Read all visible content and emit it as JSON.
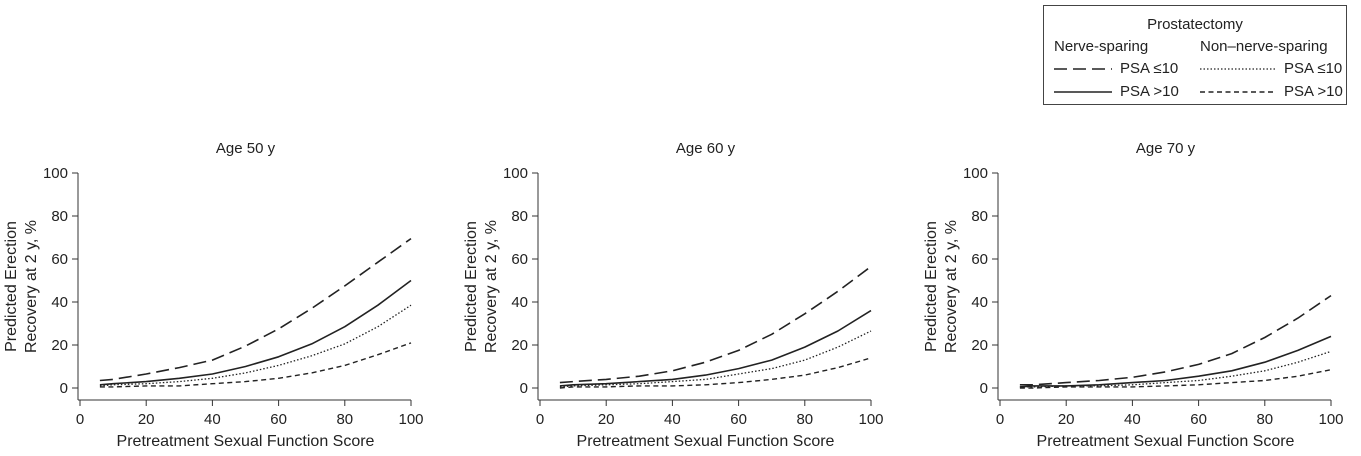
{
  "legend": {
    "title": "Prostatectomy",
    "groups": [
      "Nerve-sparing",
      "Non–nerve-sparing"
    ],
    "items": [
      "PSA ≤10",
      "PSA >10",
      "PSA ≤10",
      "PSA >10"
    ]
  },
  "chart_data": [
    {
      "type": "line",
      "title": "Age 50 y",
      "xlabel": "Pretreatment Sexual Function Score",
      "ylabel": "Predicted Erection Recovery at 2 y, %",
      "xlim": [
        0,
        100
      ],
      "ylim": [
        0,
        100
      ],
      "xticks": [
        "0",
        "20",
        "40",
        "60",
        "80",
        "100"
      ],
      "yticks": [
        "0",
        "20",
        "40",
        "60",
        "80",
        "100"
      ],
      "x": [
        6,
        10,
        20,
        30,
        40,
        50,
        60,
        70,
        80,
        90,
        100
      ],
      "series": [
        {
          "name": "Nerve-sparing PSA ≤10",
          "style": "longdash",
          "values": [
            3.5,
            4,
            6.5,
            9.5,
            13,
            19.5,
            27.5,
            37,
            47.5,
            58.5,
            69.5
          ]
        },
        {
          "name": "Nerve-sparing PSA >10",
          "style": "solid",
          "values": [
            1.5,
            2,
            3,
            4.5,
            6.5,
            10,
            14.5,
            20.5,
            28.5,
            38.5,
            50
          ]
        },
        {
          "name": "Non–nerve-sparing PSA ≤10",
          "style": "dotted",
          "values": [
            1,
            1.5,
            2,
            3,
            4.5,
            7,
            10.5,
            15,
            20.5,
            28.5,
            38.5
          ]
        },
        {
          "name": "Non–nerve-sparing PSA >10",
          "style": "shortdash",
          "values": [
            0.5,
            0.5,
            1,
            1,
            2,
            3,
            4.5,
            7,
            10.5,
            15.5,
            21
          ]
        }
      ],
      "grid": false,
      "legend_position": "top-right"
    },
    {
      "type": "line",
      "title": "Age 60 y",
      "xlabel": "Pretreatment Sexual Function Score",
      "ylabel": "Predicted Erection Recovery at 2 y, %",
      "xlim": [
        0,
        100
      ],
      "ylim": [
        0,
        100
      ],
      "xticks": [
        "0",
        "20",
        "40",
        "60",
        "80",
        "100"
      ],
      "yticks": [
        "0",
        "20",
        "40",
        "60",
        "80",
        "100"
      ],
      "x": [
        6,
        10,
        20,
        30,
        40,
        50,
        60,
        70,
        80,
        90,
        100
      ],
      "series": [
        {
          "name": "Nerve-sparing PSA ≤10",
          "style": "longdash",
          "values": [
            2.5,
            3,
            4,
            5.5,
            8,
            12,
            17.5,
            25,
            34.5,
            45,
            56.5
          ]
        },
        {
          "name": "Nerve-sparing PSA >10",
          "style": "solid",
          "values": [
            1,
            1.5,
            2,
            3,
            4,
            6,
            9,
            13,
            19,
            26.5,
            36
          ]
        },
        {
          "name": "Non–nerve-sparing PSA ≤10",
          "style": "dotted",
          "values": [
            0.5,
            1,
            1.5,
            2,
            3,
            4,
            6.5,
            9,
            13,
            19,
            26.5
          ]
        },
        {
          "name": "Non–nerve-sparing PSA >10",
          "style": "shortdash",
          "values": [
            0,
            0.5,
            0.5,
            1,
            1,
            1.5,
            2.5,
            4,
            6,
            9.5,
            14
          ]
        }
      ],
      "grid": false,
      "legend_position": "top-right"
    },
    {
      "type": "line",
      "title": "Age 70 y",
      "xlabel": "Pretreatment Sexual Function Score",
      "ylabel": "Predicted Erection Recovery at 2 y, %",
      "xlim": [
        0,
        100
      ],
      "ylim": [
        0,
        100
      ],
      "xticks": [
        "0",
        "20",
        "40",
        "60",
        "80",
        "100"
      ],
      "yticks": [
        "0",
        "20",
        "40",
        "60",
        "80",
        "100"
      ],
      "x": [
        6,
        10,
        20,
        30,
        40,
        50,
        60,
        70,
        80,
        90,
        100
      ],
      "series": [
        {
          "name": "Nerve-sparing PSA ≤10",
          "style": "longdash",
          "values": [
            1.5,
            1.5,
            2.5,
            3.5,
            5,
            7.5,
            11,
            16,
            23.5,
            32.5,
            43
          ]
        },
        {
          "name": "Nerve-sparing PSA >10",
          "style": "solid",
          "values": [
            0.5,
            1,
            1,
            1.5,
            2.5,
            3.5,
            5.5,
            8,
            12,
            17.5,
            24
          ]
        },
        {
          "name": "Non–nerve-sparing PSA ≤10",
          "style": "dotted",
          "values": [
            0.5,
            0.5,
            1,
            1,
            1.5,
            2.5,
            3.5,
            5.5,
            8,
            12,
            17
          ]
        },
        {
          "name": "Non–nerve-sparing PSA >10",
          "style": "shortdash",
          "values": [
            0,
            0,
            0.5,
            0.5,
            0.5,
            1,
            1.5,
            2.5,
            3.5,
            5.5,
            8.5
          ]
        }
      ],
      "grid": false,
      "legend_position": "top-right"
    }
  ]
}
